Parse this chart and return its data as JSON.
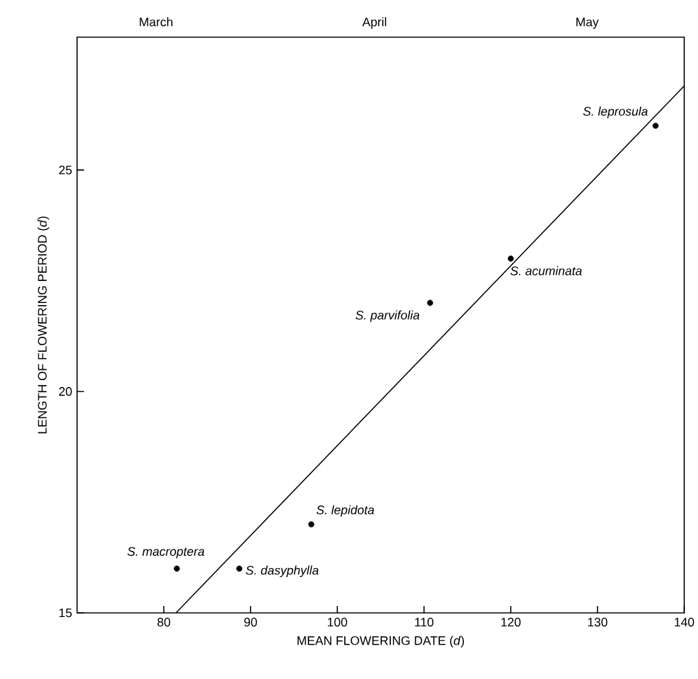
{
  "chart_data": {
    "type": "scatter",
    "xlabel": "MEAN FLOWERING DATE (*d*)",
    "ylabel": "LENGTH OF FLOWERING PERIOD (*d*)",
    "xlim": [
      70,
      140
    ],
    "xticks": [
      80,
      90,
      100,
      110,
      120,
      130,
      140
    ],
    "ylim": [
      15,
      28
    ],
    "yticks": [
      15,
      20,
      25
    ],
    "marker": "circle",
    "series": [
      {
        "color": "#000000",
        "x": [
          81.5,
          88.7,
          97,
          110.7,
          120,
          136.7
        ],
        "values": [
          16,
          16,
          17,
          22,
          23,
          26
        ]
      },
      {
        "type": "line",
        "color": "#000000",
        "line_style": "solid",
        "marker": "none",
        "x": [
          81.4,
          140
        ],
        "values": [
          15,
          26.9
        ]
      }
    ],
    "annotations": [
      {
        "text": "S. macroptera",
        "x": 81.5,
        "y": 16
      },
      {
        "text": "S. dasyphylla",
        "x": 88.7,
        "y": 16
      },
      {
        "text": "S. lepidota",
        "x": 97,
        "y": 17
      },
      {
        "text": "S. parvifolia",
        "x": 110.7,
        "y": 22
      },
      {
        "text": "S. acuminata",
        "x": 120,
        "y": 23
      },
      {
        "text": "S. leprosula",
        "x": 136.7,
        "y": 26
      },
      "March",
      "April",
      "May"
    ]
  }
}
